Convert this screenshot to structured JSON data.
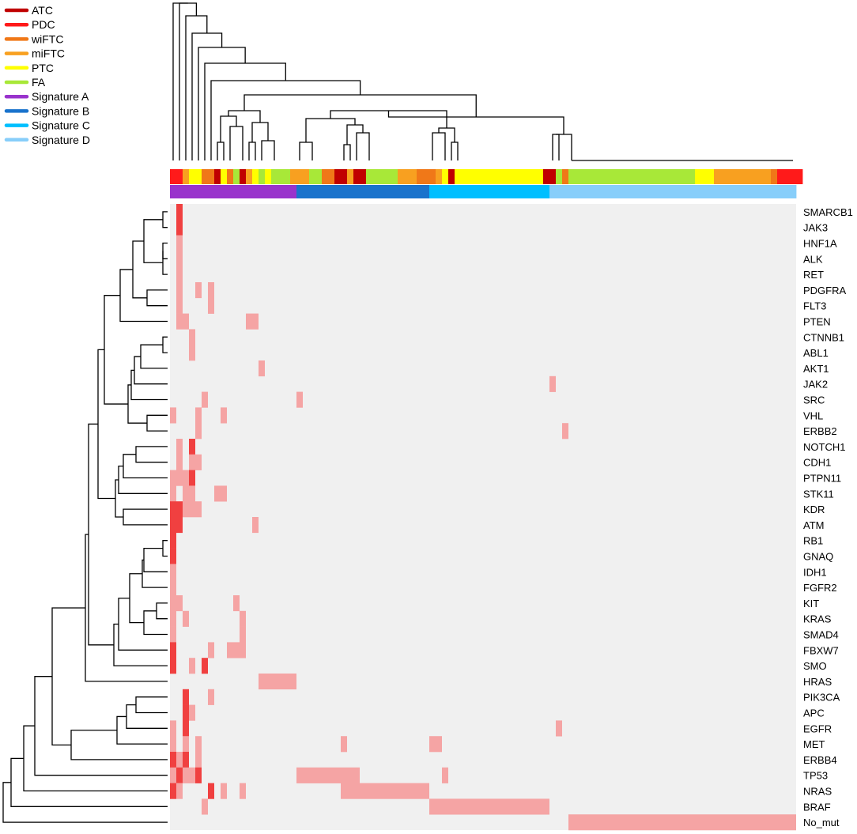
{
  "chart_data": {
    "type": "heatmap",
    "title": "",
    "legend": [
      {
        "label": "ATC",
        "color": "#c00000"
      },
      {
        "label": "PDC",
        "color": "#ff1a1a"
      },
      {
        "label": "wiFTC",
        "color": "#f07818"
      },
      {
        "label": "miFTC",
        "color": "#f8a020"
      },
      {
        "label": "PTC",
        "color": "#ffff00"
      },
      {
        "label": "FA",
        "color": "#a8e838"
      },
      {
        "label": "Signature A",
        "color": "#9933cc"
      },
      {
        "label": "Signature B",
        "color": "#1a73cc"
      },
      {
        "label": "Signature C",
        "color": "#00bfff"
      },
      {
        "label": "Signature D",
        "color": "#87cefa"
      }
    ],
    "n_samples": 99,
    "genes": [
      "SMARCB1",
      "JAK3",
      "HNF1A",
      "ALK",
      "RET",
      "PDGFRA",
      "FLT3",
      "PTEN",
      "CTNNB1",
      "ABL1",
      "AKT1",
      "JAK2",
      "SRC",
      "VHL",
      "ERBB2",
      "NOTCH1",
      "CDH1",
      "PTPN11",
      "STK11",
      "KDR",
      "ATM",
      "RB1",
      "GNAQ",
      "IDH1",
      "FGFR2",
      "KIT",
      "KRAS",
      "SMAD4",
      "FBXW7",
      "SMO",
      "HRAS",
      "PIK3CA",
      "APC",
      "EGFR",
      "MET",
      "ERBB4",
      "TP53",
      "NRAS",
      "BRAF",
      "No_mut"
    ],
    "histology_track": [
      {
        "type": "PDC",
        "count": 2
      },
      {
        "type": "miFTC",
        "count": 1
      },
      {
        "type": "PTC",
        "count": 2
      },
      {
        "type": "wiFTC",
        "count": 2
      },
      {
        "type": "ATC",
        "count": 1
      },
      {
        "type": "PTC",
        "count": 1
      },
      {
        "type": "wiFTC",
        "count": 1
      },
      {
        "type": "FA",
        "count": 1
      },
      {
        "type": "ATC",
        "count": 1
      },
      {
        "type": "miFTC",
        "count": 1
      },
      {
        "type": "PTC",
        "count": 1
      },
      {
        "type": "FA",
        "count": 1
      },
      {
        "type": "PTC",
        "count": 1
      },
      {
        "type": "FA",
        "count": 3
      },
      {
        "type": "miFTC",
        "count": 3
      },
      {
        "type": "FA",
        "count": 2
      },
      {
        "type": "wiFTC",
        "count": 2
      },
      {
        "type": "ATC",
        "count": 2
      },
      {
        "type": "miFTC",
        "count": 1
      },
      {
        "type": "ATC",
        "count": 2
      },
      {
        "type": "FA",
        "count": 5
      },
      {
        "type": "miFTC",
        "count": 3
      },
      {
        "type": "wiFTC",
        "count": 3
      },
      {
        "type": "miFTC",
        "count": 1
      },
      {
        "type": "PTC",
        "count": 1
      },
      {
        "type": "ATC",
        "count": 1
      },
      {
        "type": "PTC",
        "count": 14
      },
      {
        "type": "ATC",
        "count": 2
      },
      {
        "type": "FA",
        "count": 1
      },
      {
        "type": "wiFTC",
        "count": 1
      },
      {
        "type": "FA",
        "count": 20
      },
      {
        "type": "PTC",
        "count": 3
      },
      {
        "type": "miFTC",
        "count": 9
      },
      {
        "type": "wiFTC",
        "count": 1
      },
      {
        "type": "PDC",
        "count": 4
      }
    ],
    "signature_track": [
      {
        "type": "Signature A",
        "count": 20
      },
      {
        "type": "Signature B",
        "count": 21
      },
      {
        "type": "Signature C",
        "count": 19
      },
      {
        "type": "Signature D",
        "count": 39
      }
    ],
    "value_levels": {
      "0": "no mutation",
      "1": "mutation",
      "2": "multiple / strong mutation"
    },
    "cells": [
      {
        "gene": "SMARCB1",
        "segments": [
          [
            1,
            1,
            2
          ]
        ]
      },
      {
        "gene": "JAK3",
        "segments": [
          [
            1,
            1,
            2
          ]
        ]
      },
      {
        "gene": "HNF1A",
        "segments": [
          [
            1,
            1,
            1
          ]
        ]
      },
      {
        "gene": "ALK",
        "segments": [
          [
            1,
            1,
            1
          ]
        ]
      },
      {
        "gene": "RET",
        "segments": [
          [
            1,
            1,
            1
          ]
        ]
      },
      {
        "gene": "PDGFRA",
        "segments": [
          [
            1,
            1,
            1
          ],
          [
            4,
            4,
            1
          ],
          [
            6,
            6,
            1
          ]
        ]
      },
      {
        "gene": "FLT3",
        "segments": [
          [
            1,
            1,
            1
          ],
          [
            6,
            6,
            1
          ]
        ]
      },
      {
        "gene": "PTEN",
        "segments": [
          [
            1,
            2,
            1
          ],
          [
            12,
            13,
            1
          ]
        ]
      },
      {
        "gene": "CTNNB1",
        "segments": [
          [
            3,
            3,
            1
          ]
        ]
      },
      {
        "gene": "ABL1",
        "segments": [
          [
            3,
            3,
            1
          ]
        ]
      },
      {
        "gene": "AKT1",
        "segments": [
          [
            14,
            14,
            1
          ]
        ]
      },
      {
        "gene": "JAK2",
        "segments": [
          [
            60,
            60,
            1
          ]
        ]
      },
      {
        "gene": "SRC",
        "segments": [
          [
            5,
            5,
            1
          ],
          [
            20,
            20,
            1
          ]
        ]
      },
      {
        "gene": "VHL",
        "segments": [
          [
            0,
            0,
            1
          ],
          [
            4,
            4,
            1
          ],
          [
            8,
            8,
            1
          ]
        ]
      },
      {
        "gene": "ERBB2",
        "segments": [
          [
            4,
            4,
            1
          ],
          [
            62,
            62,
            1
          ]
        ]
      },
      {
        "gene": "NOTCH1",
        "segments": [
          [
            1,
            1,
            1
          ],
          [
            3,
            3,
            2
          ]
        ]
      },
      {
        "gene": "CDH1",
        "segments": [
          [
            1,
            1,
            1
          ],
          [
            3,
            4,
            1
          ]
        ]
      },
      {
        "gene": "PTPN11",
        "segments": [
          [
            0,
            2,
            1
          ],
          [
            3,
            3,
            2
          ]
        ]
      },
      {
        "gene": "STK11",
        "segments": [
          [
            0,
            0,
            1
          ],
          [
            2,
            3,
            1
          ],
          [
            7,
            8,
            1
          ]
        ]
      },
      {
        "gene": "KDR",
        "segments": [
          [
            0,
            1,
            2
          ],
          [
            2,
            3,
            1
          ],
          [
            4,
            4,
            1
          ]
        ]
      },
      {
        "gene": "ATM",
        "segments": [
          [
            0,
            1,
            2
          ],
          [
            13,
            13,
            1
          ]
        ]
      },
      {
        "gene": "RB1",
        "segments": [
          [
            0,
            0,
            2
          ]
        ]
      },
      {
        "gene": "GNAQ",
        "segments": [
          [
            0,
            0,
            2
          ]
        ]
      },
      {
        "gene": "IDH1",
        "segments": [
          [
            0,
            0,
            1
          ]
        ]
      },
      {
        "gene": "FGFR2",
        "segments": [
          [
            0,
            0,
            1
          ]
        ]
      },
      {
        "gene": "KIT",
        "segments": [
          [
            0,
            1,
            1
          ],
          [
            10,
            10,
            1
          ]
        ]
      },
      {
        "gene": "KRAS",
        "segments": [
          [
            0,
            0,
            1
          ],
          [
            2,
            2,
            1
          ],
          [
            11,
            11,
            1
          ]
        ]
      },
      {
        "gene": "SMAD4",
        "segments": [
          [
            0,
            0,
            1
          ],
          [
            11,
            11,
            1
          ]
        ]
      },
      {
        "gene": "FBXW7",
        "segments": [
          [
            0,
            0,
            2
          ],
          [
            6,
            6,
            1
          ],
          [
            9,
            11,
            1
          ]
        ]
      },
      {
        "gene": "SMO",
        "segments": [
          [
            0,
            0,
            2
          ],
          [
            3,
            3,
            1
          ],
          [
            5,
            5,
            2
          ]
        ]
      },
      {
        "gene": "HRAS",
        "segments": [
          [
            14,
            19,
            1
          ]
        ]
      },
      {
        "gene": "PIK3CA",
        "segments": [
          [
            2,
            2,
            2
          ],
          [
            6,
            6,
            1
          ]
        ]
      },
      {
        "gene": "APC",
        "segments": [
          [
            2,
            2,
            2
          ],
          [
            3,
            3,
            1
          ]
        ]
      },
      {
        "gene": "EGFR",
        "segments": [
          [
            0,
            0,
            1
          ],
          [
            2,
            2,
            2
          ],
          [
            61,
            61,
            1
          ]
        ]
      },
      {
        "gene": "MET",
        "segments": [
          [
            0,
            0,
            1
          ],
          [
            2,
            2,
            1
          ],
          [
            4,
            4,
            1
          ],
          [
            27,
            27,
            1
          ],
          [
            41,
            42,
            1
          ]
        ]
      },
      {
        "gene": "ERBB4",
        "segments": [
          [
            0,
            0,
            2
          ],
          [
            1,
            1,
            1
          ],
          [
            2,
            2,
            2
          ],
          [
            4,
            4,
            1
          ]
        ]
      },
      {
        "gene": "TP53",
        "segments": [
          [
            0,
            0,
            1
          ],
          [
            1,
            1,
            2
          ],
          [
            2,
            3,
            1
          ],
          [
            4,
            4,
            2
          ],
          [
            20,
            29,
            1
          ],
          [
            43,
            43,
            1
          ]
        ]
      },
      {
        "gene": "NRAS",
        "segments": [
          [
            0,
            0,
            2
          ],
          [
            1,
            1,
            1
          ],
          [
            6,
            6,
            2
          ],
          [
            8,
            8,
            1
          ],
          [
            11,
            11,
            1
          ],
          [
            27,
            40,
            1
          ]
        ]
      },
      {
        "gene": "BRAF",
        "segments": [
          [
            5,
            5,
            1
          ],
          [
            41,
            59,
            1
          ]
        ]
      },
      {
        "gene": "No_mut",
        "segments": [
          [
            63,
            98,
            1
          ]
        ]
      }
    ]
  }
}
